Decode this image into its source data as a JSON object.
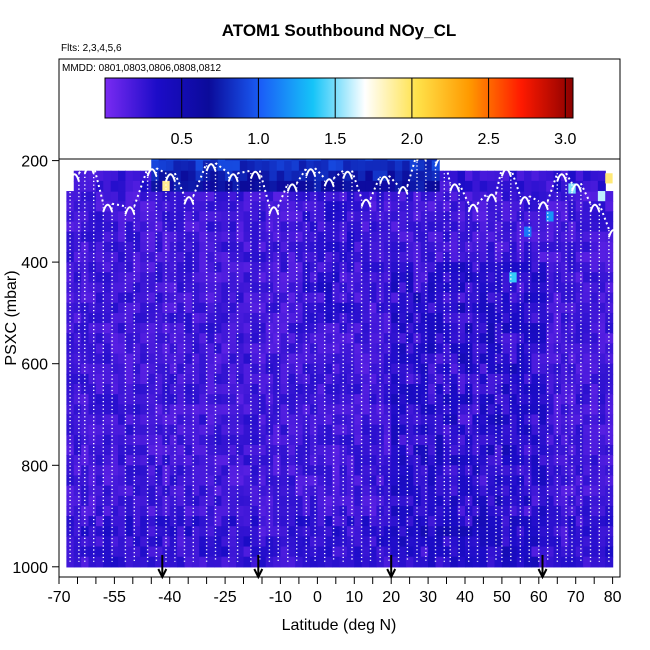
{
  "chart_data": {
    "type": "heatmap",
    "title": "ATOM1 Southbound NOy_CL",
    "flights_note": "Flts: 2,3,4,5,6",
    "dates_note": "MMDD: 0801,0803,0806,0808,0812",
    "xlabel": "Latitude (deg N)",
    "ylabel": "PSXC (mbar)",
    "xlim": [
      -70,
      82
    ],
    "ylim": [
      1020,
      0
    ],
    "x_ticks": [
      -70,
      -55,
      -40,
      -25,
      -10,
      0,
      10,
      20,
      30,
      40,
      50,
      60,
      70,
      80
    ],
    "y_ticks": [
      200,
      400,
      600,
      800,
      1000
    ],
    "colorbar": {
      "min": 0,
      "max": 3.05,
      "ticks": [
        "0.5",
        "1.0",
        "1.5",
        "2.0",
        "2.5",
        "3.0"
      ],
      "stops": [
        "#7a2bf2",
        "#1c0cc8",
        "#0b0b9a",
        "#1a5ef7",
        "#16c4f8",
        "#ffffff",
        "#ffe24a",
        "#ff9a00",
        "#ff1a00",
        "#8a0000"
      ]
    },
    "data_region": {
      "x_range": [
        -68,
        80
      ],
      "p_top_main": 260,
      "p_bottom": 1000
    },
    "high_altitude_band": {
      "x_range": [
        -45,
        32
      ],
      "p_range": [
        160,
        245
      ],
      "value": 1.0
    },
    "profile_laterals": [
      -67,
      -63,
      -58,
      -52,
      -46,
      -41,
      -36,
      -30,
      -24,
      -18,
      -13,
      -8,
      -3,
      2,
      7,
      12,
      17,
      22,
      27,
      32,
      36,
      41,
      46,
      50,
      55,
      60,
      65,
      69,
      74,
      79
    ],
    "profile_tops": [
      225,
      210,
      285,
      290,
      215,
      225,
      270,
      205,
      225,
      220,
      290,
      245,
      215,
      235,
      220,
      275,
      230,
      250,
      185,
      195,
      245,
      285,
      265,
      215,
      270,
      280,
      225,
      245,
      285,
      335
    ],
    "takeoff_arrows": [
      -42,
      -16,
      20,
      61
    ],
    "elevated_cells": [
      {
        "lat": 52,
        "p": 420,
        "value": 1.4
      },
      {
        "lat": 56,
        "p": 330,
        "value": 1.1
      },
      {
        "lat": 62,
        "p": 300,
        "value": 1.2
      },
      {
        "lat": 76,
        "p": 260,
        "value": 1.6
      },
      {
        "lat": 78,
        "p": 225,
        "value": 1.95
      },
      {
        "lat": 68,
        "p": 245,
        "value": 1.5
      },
      {
        "lat": -42,
        "p": 240,
        "value": 1.9
      }
    ]
  }
}
